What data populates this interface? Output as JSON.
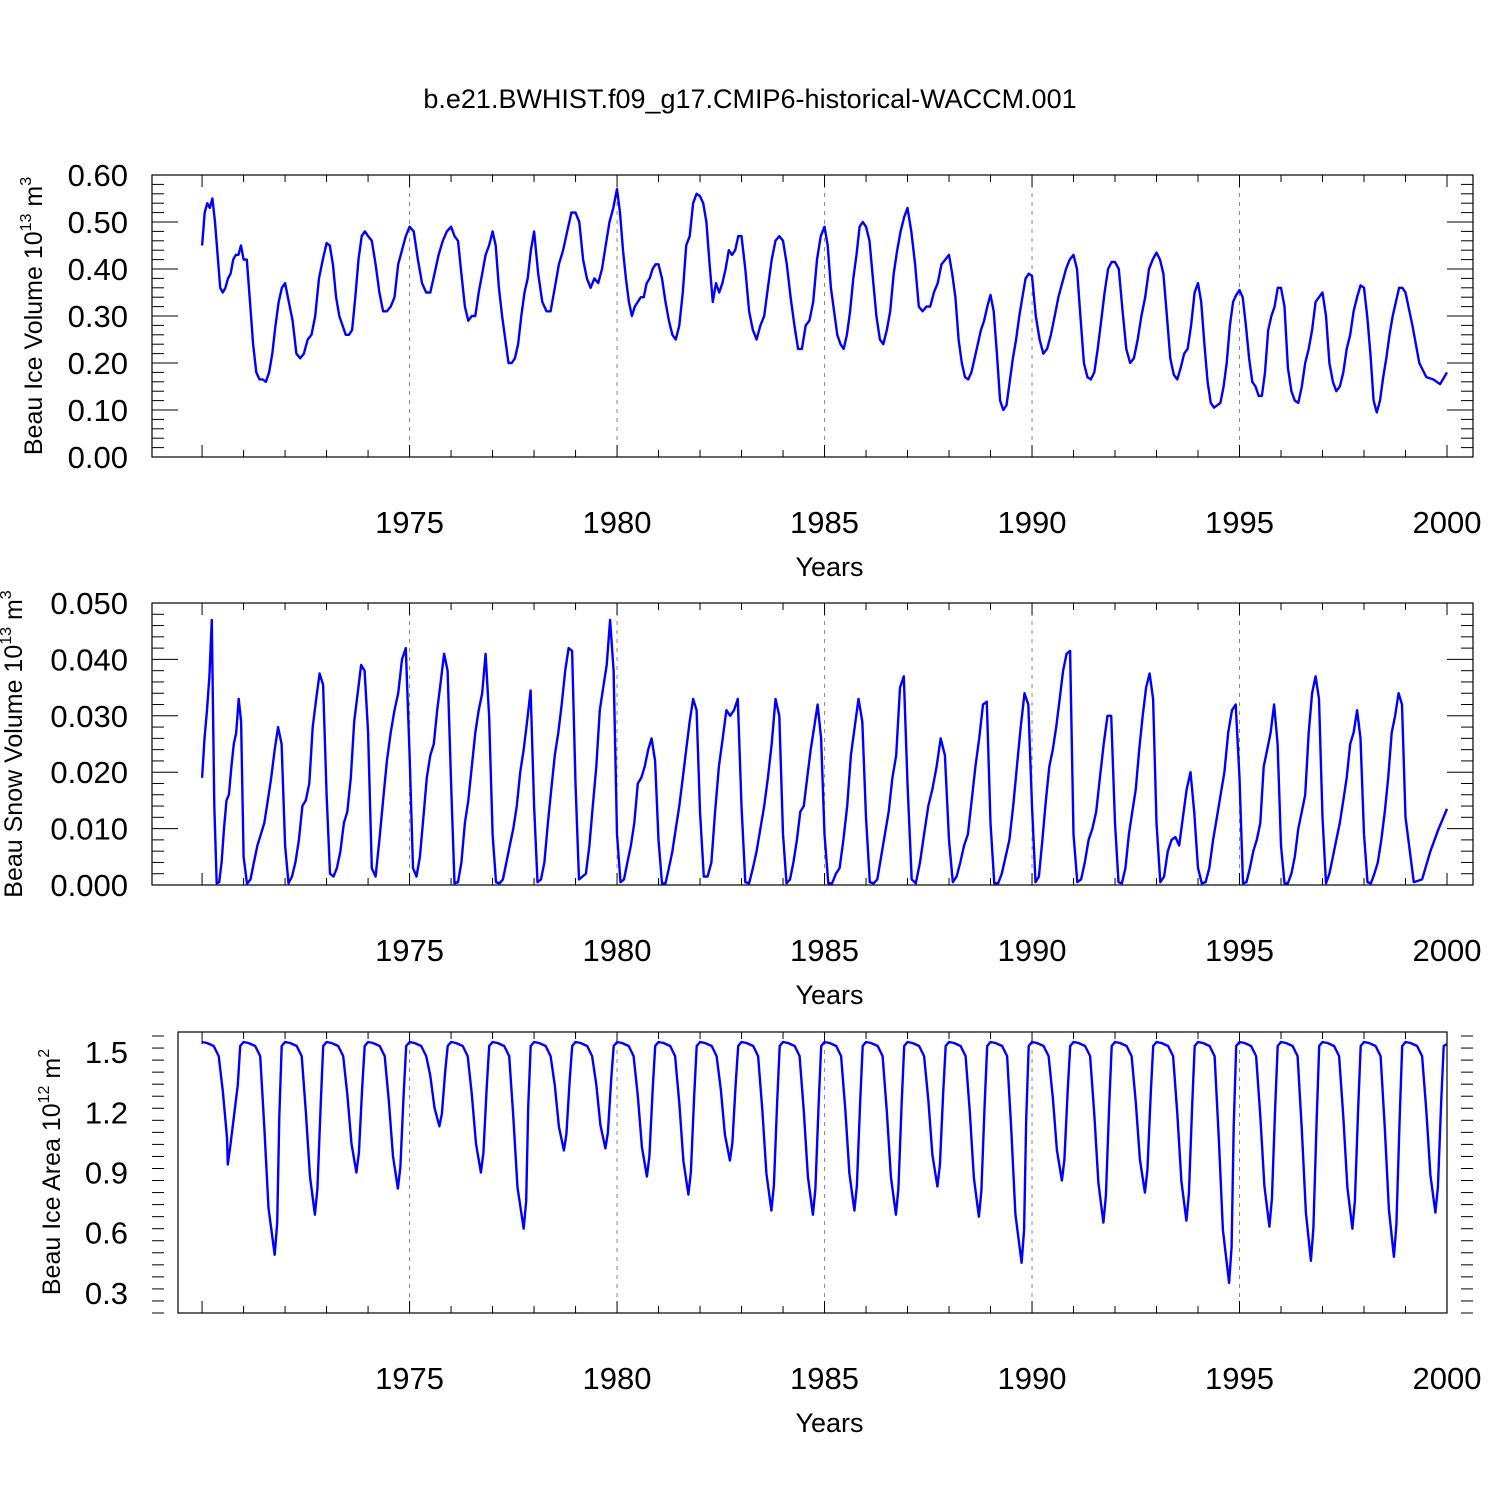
{
  "title": "b.e21.BWHIST.f09_g17.CMIP6-historical-WACCM.001",
  "colors": {
    "line": "#0000ff",
    "axis": "#000000",
    "grid": "#888888"
  },
  "chart_data": [
    {
      "type": "line",
      "name": "ice-volume",
      "ylabel": "Beau Ice Volume 10",
      "ylabel_exp": "13",
      "ylabel_unit": " m",
      "ylabel_unit_exp": "3",
      "xlabel": "Years",
      "xlim": [
        1969.42,
        2000.0
      ],
      "ylim": [
        0.0,
        0.6
      ],
      "yticks": [
        "0.00",
        "0.10",
        "0.20",
        "0.30",
        "0.40",
        "0.50",
        "0.60"
      ],
      "ytick_values": [
        0.0,
        0.1,
        0.2,
        0.3,
        0.4,
        0.5,
        0.6
      ],
      "xticks": [
        "1975",
        "1980",
        "1985",
        "1990",
        "1995",
        "2000"
      ],
      "xtick_values": [
        1975,
        1980,
        1985,
        1990,
        1995,
        2000
      ],
      "grid_x": [
        1975,
        1980,
        1985,
        1990,
        1995
      ],
      "base_year": 1970.0,
      "yearly": [
        [
          0.45,
          0.52,
          0.54,
          0.53,
          0.55,
          0.5,
          0.43,
          0.36,
          0.35,
          0.36,
          0.38,
          0.39,
          0.42,
          0.43,
          0.43,
          0.45,
          0.42
        ],
        [
          0.45,
          0.42,
          0.33,
          0.24,
          0.18,
          0.165,
          0.165,
          0.16,
          0.18,
          0.22,
          0.28,
          0.33,
          0.36,
          0.37
        ],
        [
          0.37,
          0.33,
          0.29,
          0.22,
          0.21,
          0.22,
          0.25,
          0.26,
          0.3,
          0.38,
          0.42,
          0.455
        ],
        [
          0.455,
          0.45,
          0.41,
          0.34,
          0.3,
          0.28,
          0.26,
          0.26,
          0.27,
          0.34,
          0.42,
          0.47,
          0.48,
          0.47
        ],
        [
          0.48,
          0.46,
          0.41,
          0.35,
          0.31,
          0.31,
          0.32,
          0.34,
          0.41,
          0.44,
          0.47,
          0.49
        ],
        [
          0.49,
          0.48,
          0.42,
          0.37,
          0.35,
          0.35,
          0.39,
          0.43,
          0.46,
          0.48,
          0.49
        ],
        [
          0.495,
          0.47,
          0.46,
          0.39,
          0.32,
          0.29,
          0.3,
          0.3,
          0.35,
          0.39,
          0.43,
          0.45,
          0.48
        ],
        [
          0.48,
          0.45,
          0.36,
          0.3,
          0.25,
          0.2,
          0.2,
          0.21,
          0.24,
          0.3,
          0.35,
          0.38,
          0.44,
          0.48
        ],
        [
          0.48,
          0.39,
          0.33,
          0.31,
          0.31,
          0.36,
          0.41,
          0.44,
          0.48,
          0.52,
          0.52
        ],
        [
          0.52,
          0.5,
          0.42,
          0.38,
          0.36,
          0.38,
          0.37,
          0.4,
          0.45,
          0.5,
          0.53,
          0.57
        ],
        [
          0.57,
          0.52,
          0.44,
          0.38,
          0.33,
          0.3,
          0.32,
          0.33,
          0.34,
          0.34,
          0.37,
          0.38,
          0.4,
          0.41,
          0.41
        ],
        [
          0.41,
          0.38,
          0.33,
          0.29,
          0.26,
          0.25,
          0.28,
          0.35,
          0.45,
          0.47,
          0.54,
          0.56,
          0.555
        ],
        [
          0.555,
          0.54,
          0.5,
          0.41,
          0.33,
          0.37,
          0.35,
          0.37,
          0.4,
          0.44,
          0.43,
          0.44,
          0.47,
          0.47
        ],
        [
          0.47,
          0.4,
          0.31,
          0.27,
          0.25,
          0.28,
          0.3,
          0.36,
          0.42,
          0.46,
          0.47,
          0.46
        ],
        [
          0.46,
          0.41,
          0.34,
          0.28,
          0.23,
          0.23,
          0.28,
          0.29,
          0.33,
          0.42,
          0.47,
          0.49
        ],
        [
          0.49,
          0.45,
          0.36,
          0.31,
          0.26,
          0.24,
          0.23,
          0.26,
          0.31,
          0.38,
          0.43,
          0.49,
          0.5,
          0.49
        ],
        [
          0.49,
          0.46,
          0.38,
          0.3,
          0.25,
          0.24,
          0.27,
          0.31,
          0.39,
          0.44,
          0.48,
          0.51,
          0.53
        ],
        [
          0.53,
          0.48,
          0.41,
          0.32,
          0.31,
          0.32,
          0.32,
          0.35,
          0.37,
          0.41,
          0.42,
          0.43
        ],
        [
          0.43,
          0.39,
          0.34,
          0.25,
          0.2,
          0.17,
          0.165,
          0.18,
          0.21,
          0.24,
          0.27,
          0.29,
          0.32,
          0.345
        ],
        [
          0.345,
          0.31,
          0.22,
          0.12,
          0.1,
          0.11,
          0.16,
          0.21,
          0.25,
          0.3,
          0.34,
          0.38,
          0.39,
          0.385
        ],
        [
          0.385,
          0.3,
          0.25,
          0.22,
          0.23,
          0.26,
          0.3,
          0.34,
          0.37,
          0.4,
          0.42,
          0.43
        ],
        [
          0.43,
          0.4,
          0.3,
          0.2,
          0.17,
          0.165,
          0.18,
          0.23,
          0.29,
          0.35,
          0.4,
          0.415,
          0.415
        ],
        [
          0.415,
          0.4,
          0.31,
          0.23,
          0.2,
          0.21,
          0.25,
          0.3,
          0.34,
          0.4,
          0.42,
          0.435
        ],
        [
          0.435,
          0.42,
          0.39,
          0.3,
          0.21,
          0.175,
          0.165,
          0.19,
          0.22,
          0.23,
          0.28,
          0.35,
          0.37
        ],
        [
          0.37,
          0.33,
          0.24,
          0.16,
          0.115,
          0.105,
          0.11,
          0.115,
          0.15,
          0.2,
          0.28,
          0.33,
          0.345,
          0.355
        ],
        [
          0.355,
          0.34,
          0.28,
          0.21,
          0.16,
          0.15,
          0.13,
          0.13,
          0.18,
          0.27,
          0.3,
          0.32,
          0.36,
          0.36
        ],
        [
          0.36,
          0.32,
          0.19,
          0.14,
          0.12,
          0.115,
          0.15,
          0.2,
          0.23,
          0.27,
          0.33,
          0.34,
          0.35
        ],
        [
          0.35,
          0.3,
          0.2,
          0.16,
          0.14,
          0.15,
          0.18,
          0.23,
          0.26,
          0.31,
          0.34,
          0.365,
          0.36
        ],
        [
          0.36,
          0.3,
          0.22,
          0.12,
          0.095,
          0.12,
          0.17,
          0.21,
          0.26,
          0.3,
          0.33,
          0.36,
          0.36,
          0.35
        ],
        [
          0.35,
          0.28,
          0.2,
          0.17,
          0.165,
          0.155,
          0.18
        ]
      ]
    },
    {
      "type": "line",
      "name": "snow-volume",
      "ylabel": "Beau Snow Volume 10",
      "ylabel_exp": "13",
      "ylabel_unit": " m",
      "ylabel_unit_exp": "3",
      "xlabel": "Years",
      "xlim": [
        1969.42,
        2000.0
      ],
      "ylim": [
        0.0,
        0.05
      ],
      "yticks": [
        "0.000",
        "0.010",
        "0.020",
        "0.030",
        "0.040",
        "0.050"
      ],
      "ytick_values": [
        0.0,
        0.01,
        0.02,
        0.03,
        0.04,
        0.05
      ],
      "xticks": [
        "1975",
        "1980",
        "1985",
        "1990",
        "1995",
        "2000"
      ],
      "xtick_values": [
        1975,
        1980,
        1985,
        1990,
        1995,
        2000
      ],
      "grid_x": [
        1975,
        1980,
        1985,
        1990,
        1995
      ],
      "base_year": 1970.0,
      "yearly": [
        [
          0.019,
          0.026,
          0.031,
          0.037,
          0.047,
          0.014,
          0.0003,
          0.0005,
          0.004,
          0.01,
          0.015,
          0.016,
          0.021,
          0.025,
          0.027,
          0.033,
          0.029,
          0.005
        ],
        [
          0.005,
          0.0002,
          0.001,
          0.004,
          0.007,
          0.009,
          0.011,
          0.015,
          0.019,
          0.024,
          0.028,
          0.025,
          0.007
        ],
        [
          0.007,
          0.0003,
          0.0015,
          0.004,
          0.008,
          0.014,
          0.015,
          0.018,
          0.028,
          0.033,
          0.0375,
          0.0355,
          0.016
        ],
        [
          0.016,
          0.002,
          0.0015,
          0.003,
          0.006,
          0.011,
          0.013,
          0.019,
          0.029,
          0.034,
          0.039,
          0.038,
          0.027
        ],
        [
          0.027,
          0.003,
          0.0015,
          0.008,
          0.015,
          0.022,
          0.027,
          0.031,
          0.034,
          0.04,
          0.042,
          0.023
        ],
        [
          0.023,
          0.003,
          0.0015,
          0.005,
          0.012,
          0.019,
          0.023,
          0.025,
          0.031,
          0.036,
          0.041,
          0.038,
          0.018
        ],
        [
          0.018,
          0.0003,
          0.0005,
          0.004,
          0.011,
          0.015,
          0.021,
          0.027,
          0.031,
          0.034,
          0.041,
          0.03,
          0.009
        ],
        [
          0.009,
          0.0005,
          0.0003,
          0.001,
          0.004,
          0.007,
          0.01,
          0.014,
          0.02,
          0.024,
          0.029,
          0.0345,
          0.014
        ],
        [
          0.014,
          0.0005,
          0.001,
          0.004,
          0.011,
          0.017,
          0.023,
          0.027,
          0.032,
          0.038,
          0.042,
          0.0415,
          0.018
        ],
        [
          0.018,
          0.001,
          0.0015,
          0.002,
          0.007,
          0.014,
          0.021,
          0.031,
          0.035,
          0.039,
          0.047,
          0.038,
          0.009
        ],
        [
          0.009,
          0.0005,
          0.001,
          0.004,
          0.007,
          0.011,
          0.018,
          0.019,
          0.021,
          0.024,
          0.026,
          0.022,
          0.008
        ],
        [
          0.008,
          0.0003,
          0.0003,
          0.003,
          0.006,
          0.01,
          0.014,
          0.019,
          0.024,
          0.029,
          0.033,
          0.031,
          0.013
        ],
        [
          0.013,
          0.0015,
          0.0015,
          0.004,
          0.013,
          0.021,
          0.026,
          0.031,
          0.03,
          0.031,
          0.033,
          0.014
        ],
        [
          0.014,
          0.0005,
          0.0003,
          0.003,
          0.006,
          0.01,
          0.014,
          0.019,
          0.025,
          0.033,
          0.03,
          0.009
        ],
        [
          0.009,
          0.0003,
          0.001,
          0.004,
          0.008,
          0.013,
          0.014,
          0.019,
          0.024,
          0.028,
          0.032,
          0.026,
          0.009
        ],
        [
          0.009,
          0.0003,
          0.0003,
          0.002,
          0.003,
          0.008,
          0.014,
          0.023,
          0.028,
          0.033,
          0.029,
          0.012
        ],
        [
          0.012,
          0.0005,
          0.0003,
          0.001,
          0.005,
          0.009,
          0.013,
          0.019,
          0.023,
          0.035,
          0.037,
          0.018
        ],
        [
          0.018,
          0.001,
          0.0003,
          0.004,
          0.009,
          0.014,
          0.017,
          0.021,
          0.026,
          0.023,
          0.008
        ],
        [
          0.008,
          0.0005,
          0.0015,
          0.004,
          0.007,
          0.009,
          0.015,
          0.021,
          0.026,
          0.032,
          0.0325,
          0.011
        ],
        [
          0.011,
          0.0003,
          0.0003,
          0.002,
          0.005,
          0.008,
          0.014,
          0.021,
          0.028,
          0.034,
          0.032,
          0.014
        ],
        [
          0.014,
          0.0005,
          0.0015,
          0.008,
          0.015,
          0.021,
          0.024,
          0.028,
          0.033,
          0.038,
          0.041,
          0.0415,
          0.009
        ],
        [
          0.009,
          0.0005,
          0.001,
          0.004,
          0.008,
          0.01,
          0.013,
          0.019,
          0.025,
          0.03,
          0.03,
          0.011
        ],
        [
          0.011,
          0.0005,
          0.0003,
          0.003,
          0.009,
          0.013,
          0.017,
          0.024,
          0.03,
          0.035,
          0.0375,
          0.033,
          0.011
        ],
        [
          0.011,
          0.0005,
          0.0015,
          0.006,
          0.008,
          0.0085,
          0.007,
          0.012,
          0.017,
          0.02,
          0.013,
          0.003
        ],
        [
          0.003,
          0.0003,
          0.0005,
          0.003,
          0.008,
          0.012,
          0.016,
          0.02,
          0.027,
          0.031,
          0.032,
          0.019
        ],
        [
          0.019,
          0.0003,
          0.0005,
          0.003,
          0.006,
          0.008,
          0.011,
          0.021,
          0.024,
          0.027,
          0.032,
          0.025,
          0.007
        ],
        [
          0.007,
          0.0003,
          0.0003,
          0.002,
          0.005,
          0.01,
          0.013,
          0.016,
          0.027,
          0.034,
          0.037,
          0.033,
          0.012
        ],
        [
          0.012,
          0.0003,
          0.002,
          0.005,
          0.008,
          0.011,
          0.015,
          0.019,
          0.025,
          0.027,
          0.031,
          0.026,
          0.009
        ],
        [
          0.009,
          0.0005,
          0.0003,
          0.002,
          0.004,
          0.008,
          0.013,
          0.019,
          0.027,
          0.03,
          0.034,
          0.032,
          0.012
        ],
        [
          0.012,
          0.0005,
          0.001,
          0.006,
          0.01,
          0.0135
        ]
      ]
    },
    {
      "type": "line",
      "name": "ice-area",
      "ylabel": "Beau Ice Area 10",
      "ylabel_exp": "12",
      "ylabel_unit": " m",
      "ylabel_unit_exp": "2",
      "xlabel": "Years",
      "xlim": [
        1969.42,
        2000.0
      ],
      "ylim": [
        0.2,
        1.6
      ],
      "yticks": [
        "0.3",
        "0.6",
        "0.9",
        "1.2",
        "1.5"
      ],
      "ytick_values": [
        0.3,
        0.6,
        0.9,
        1.2,
        1.5
      ],
      "xticks": [
        "1975",
        "1980",
        "1985",
        "1990",
        "1995",
        "2000"
      ],
      "xtick_values": [
        1975,
        1980,
        1985,
        1990,
        1995,
        2000
      ],
      "grid_x": [
        1975,
        1980,
        1985,
        1990,
        1995
      ],
      "base_year": 1970.0,
      "minima": [
        0.94,
        0.49,
        0.69,
        0.9,
        0.82,
        1.13,
        0.9,
        0.62,
        1.01,
        1.02,
        0.88,
        0.79,
        0.96,
        0.71,
        0.69,
        0.71,
        0.69,
        0.83,
        0.68,
        0.45,
        0.86,
        0.65,
        0.8,
        0.66,
        0.35,
        0.63,
        0.46,
        0.62,
        0.48,
        0.7
      ],
      "min_offsets": [
        0.62,
        0.75,
        0.72,
        0.72,
        0.72,
        0.72,
        0.72,
        0.75,
        0.72,
        0.72,
        0.72,
        0.72,
        0.72,
        0.72,
        0.72,
        0.72,
        0.72,
        0.72,
        0.72,
        0.75,
        0.72,
        0.72,
        0.72,
        0.72,
        0.75,
        0.72,
        0.72,
        0.72,
        0.72,
        0.72
      ],
      "max_value": 1.55,
      "end_value": 1.54
    }
  ]
}
